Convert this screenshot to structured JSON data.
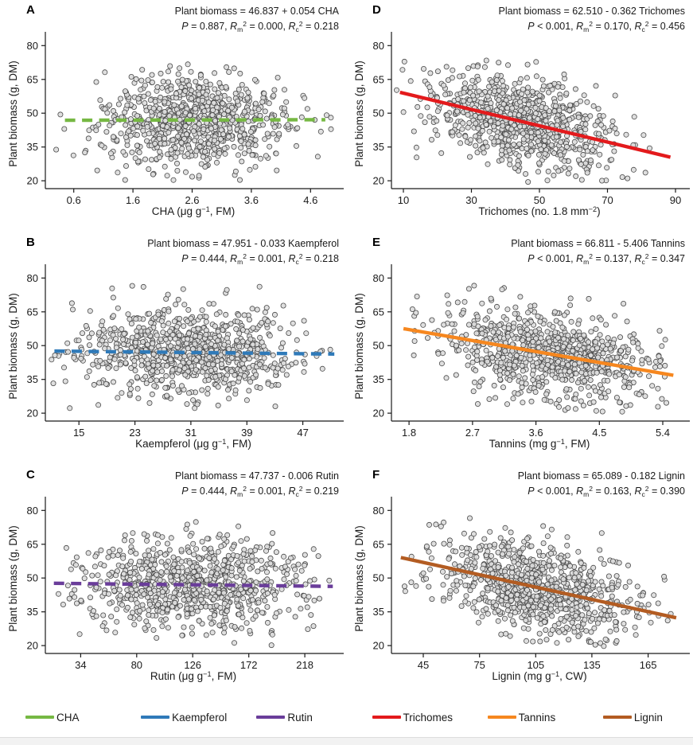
{
  "chart_data": [
    {
      "type": "scatter",
      "letter": "A",
      "equation": "Plant biomass = 46.837 + 0.054 CHA",
      "stats_segments": [
        {
          "text": "P",
          "style": "i"
        },
        {
          "text": " = 0.887, "
        },
        {
          "text": "R",
          "style": "i"
        },
        {
          "text": "m",
          "style": "sub"
        },
        {
          "text": "2",
          "style": "sup"
        },
        {
          "text": " = 0.000, "
        },
        {
          "text": "R",
          "style": "i"
        },
        {
          "text": "c",
          "style": "sub"
        },
        {
          "text": "2",
          "style": "sup"
        },
        {
          "text": " = 0.218"
        }
      ],
      "ylabel": "Plant biomass (g, DM)",
      "xlabel_segments": [
        {
          "text": "CHA (μg g"
        },
        {
          "text": "−1",
          "style": "sup"
        },
        {
          "text": ", FM)"
        }
      ],
      "xticks": [
        0.6,
        1.6,
        2.6,
        3.6,
        4.6
      ],
      "xtick_labels": [
        "0.6",
        "1.6",
        "2.6",
        "3.6",
        "4.6"
      ],
      "yticks": [
        20,
        35,
        50,
        65,
        80
      ],
      "ytick_labels": [
        "20",
        "35",
        "50",
        "65",
        "80"
      ],
      "xlim": [
        0.12,
        5.12
      ],
      "ylim": [
        16.5,
        84
      ],
      "regression": {
        "intercept": 46.837,
        "slope": 0.054,
        "x_start": 0.45,
        "x_end": 4.85,
        "style": "dashed",
        "color": "#76b843"
      },
      "scatter": {
        "n": 830,
        "seed": 101,
        "x_mean": 2.65,
        "x_sd": 0.78,
        "x_min": 0.25,
        "x_max": 4.95,
        "resid_sd": 10,
        "y_min": 19,
        "y_max": 78.5
      }
    },
    {
      "type": "scatter",
      "letter": "B",
      "equation": "Plant biomass = 47.951 - 0.033 Kaempferol",
      "stats_segments": [
        {
          "text": "P",
          "style": "i"
        },
        {
          "text": " = 0.444, "
        },
        {
          "text": "R",
          "style": "i"
        },
        {
          "text": "m",
          "style": "sub"
        },
        {
          "text": "2",
          "style": "sup"
        },
        {
          "text": " = 0.001, "
        },
        {
          "text": "R",
          "style": "i"
        },
        {
          "text": "c",
          "style": "sub"
        },
        {
          "text": "2",
          "style": "sup"
        },
        {
          "text": " = 0.218"
        }
      ],
      "ylabel": "Plant biomass (g, DM)",
      "xlabel_segments": [
        {
          "text": "Kaempferol (μg g"
        },
        {
          "text": "−1",
          "style": "sup"
        },
        {
          "text": ", FM)"
        }
      ],
      "xticks": [
        15,
        23,
        31,
        39,
        47
      ],
      "xtick_labels": [
        "15",
        "23",
        "31",
        "39",
        "47"
      ],
      "yticks": [
        20,
        35,
        50,
        65,
        80
      ],
      "ytick_labels": [
        "20",
        "35",
        "50",
        "65",
        "80"
      ],
      "xlim": [
        10.2,
        52.5
      ],
      "ylim": [
        16.5,
        84
      ],
      "regression": {
        "intercept": 47.951,
        "slope": -0.033,
        "x_start": 11.5,
        "x_end": 51.5,
        "style": "dashed",
        "color": "#2f7ab9"
      },
      "scatter": {
        "n": 830,
        "seed": 102,
        "x_mean": 30.5,
        "x_sd": 8,
        "x_min": 11,
        "x_max": 51.5,
        "resid_sd": 10,
        "y_min": 19,
        "y_max": 78.5
      }
    },
    {
      "type": "scatter",
      "letter": "C",
      "equation": "Plant biomass = 47.737 - 0.006 Rutin",
      "stats_segments": [
        {
          "text": "P",
          "style": "i"
        },
        {
          "text": " = 0.444, "
        },
        {
          "text": "R",
          "style": "i"
        },
        {
          "text": "m",
          "style": "sub"
        },
        {
          "text": "2",
          "style": "sup"
        },
        {
          "text": " = 0.001, "
        },
        {
          "text": "R",
          "style": "i"
        },
        {
          "text": "c",
          "style": "sub"
        },
        {
          "text": "2",
          "style": "sup"
        },
        {
          "text": " = 0.219"
        }
      ],
      "ylabel": "Plant biomass (g, DM)",
      "xlabel_segments": [
        {
          "text": "Rutin (μg g"
        },
        {
          "text": "−1",
          "style": "sup"
        },
        {
          "text": ", FM)"
        }
      ],
      "xticks": [
        34,
        80,
        126,
        172,
        218
      ],
      "xtick_labels": [
        "34",
        "80",
        "126",
        "172",
        "218"
      ],
      "yticks": [
        20,
        35,
        50,
        65,
        80
      ],
      "ytick_labels": [
        "20",
        "35",
        "50",
        "65",
        "80"
      ],
      "xlim": [
        5,
        248
      ],
      "ylim": [
        16.5,
        84
      ],
      "regression": {
        "intercept": 47.737,
        "slope": -0.006,
        "x_start": 12,
        "x_end": 241,
        "style": "dashed",
        "color": "#6a3d9a"
      },
      "scatter": {
        "n": 830,
        "seed": 103,
        "x_mean": 126,
        "x_sd": 46,
        "x_min": 10,
        "x_max": 243,
        "resid_sd": 10,
        "y_min": 19,
        "y_max": 78.5
      }
    },
    {
      "type": "scatter",
      "letter": "D",
      "equation": "Plant biomass = 62.510 - 0.362 Trichomes",
      "stats_segments": [
        {
          "text": "P",
          "style": "i"
        },
        {
          "text": " < 0.001, "
        },
        {
          "text": "R",
          "style": "i"
        },
        {
          "text": "m",
          "style": "sub"
        },
        {
          "text": "2",
          "style": "sup"
        },
        {
          "text": " = 0.170, "
        },
        {
          "text": "R",
          "style": "i"
        },
        {
          "text": "c",
          "style": "sub"
        },
        {
          "text": "2",
          "style": "sup"
        },
        {
          "text": " = 0.456"
        }
      ],
      "ylabel": "Plant biomass (g, DM)",
      "xlabel_segments": [
        {
          "text": "Trichomes (no. 1.8 mm"
        },
        {
          "text": "−2",
          "style": "sup"
        },
        {
          "text": ")"
        }
      ],
      "xticks": [
        10,
        30,
        50,
        70,
        90
      ],
      "xtick_labels": [
        "10",
        "30",
        "50",
        "70",
        "90"
      ],
      "yticks": [
        20,
        35,
        50,
        65,
        80
      ],
      "ytick_labels": [
        "20",
        "35",
        "50",
        "65",
        "80"
      ],
      "xlim": [
        6.5,
        93.5
      ],
      "ylim": [
        16.5,
        84
      ],
      "regression": {
        "intercept": 62.51,
        "slope": -0.362,
        "x_start": 9,
        "x_end": 88.5,
        "style": "solid",
        "color": "#e31a1c"
      },
      "scatter": {
        "n": 830,
        "seed": 104,
        "x_mean": 45,
        "x_sd": 13.5,
        "x_min": 8,
        "x_max": 88,
        "resid_sd": 10,
        "y_min": 19,
        "y_max": 78.5
      }
    },
    {
      "type": "scatter",
      "letter": "E",
      "equation": "Plant biomass = 66.811 - 5.406 Tannins",
      "stats_segments": [
        {
          "text": "P",
          "style": "i"
        },
        {
          "text": " < 0.001, "
        },
        {
          "text": "R",
          "style": "i"
        },
        {
          "text": "m",
          "style": "sub"
        },
        {
          "text": "2",
          "style": "sup"
        },
        {
          "text": " = 0.137, "
        },
        {
          "text": "R",
          "style": "i"
        },
        {
          "text": "c",
          "style": "sub"
        },
        {
          "text": "2",
          "style": "sup"
        },
        {
          "text": " = 0.347"
        }
      ],
      "ylabel": "Plant biomass (g, DM)",
      "xlabel_segments": [
        {
          "text": "Tannins (mg g"
        },
        {
          "text": "−1",
          "style": "sup"
        },
        {
          "text": ", FM)"
        }
      ],
      "xticks": [
        1.8,
        2.7,
        3.6,
        4.5,
        5.4
      ],
      "xtick_labels": [
        "1.8",
        "2.7",
        "3.6",
        "4.5",
        "5.4"
      ],
      "yticks": [
        20,
        35,
        50,
        65,
        80
      ],
      "ytick_labels": [
        "20",
        "35",
        "50",
        "65",
        "80"
      ],
      "xlim": [
        1.55,
        5.75
      ],
      "ylim": [
        16.5,
        84
      ],
      "regression": {
        "intercept": 66.811,
        "slope": -5.406,
        "x_start": 1.72,
        "x_end": 5.55,
        "style": "solid",
        "color": "#f6871f"
      },
      "scatter": {
        "n": 830,
        "seed": 105,
        "x_mean": 3.8,
        "x_sd": 0.78,
        "x_min": 1.7,
        "x_max": 5.5,
        "resid_sd": 10,
        "y_min": 19,
        "y_max": 78.5
      }
    },
    {
      "type": "scatter",
      "letter": "F",
      "equation": "Plant biomass = 65.089 - 0.182 Lignin",
      "stats_segments": [
        {
          "text": "P",
          "style": "i"
        },
        {
          "text": " < 0.001, "
        },
        {
          "text": "R",
          "style": "i"
        },
        {
          "text": "m",
          "style": "sub"
        },
        {
          "text": "2",
          "style": "sup"
        },
        {
          "text": " = 0.163, "
        },
        {
          "text": "R",
          "style": "i"
        },
        {
          "text": "c",
          "style": "sub"
        },
        {
          "text": "2",
          "style": "sup"
        },
        {
          "text": " = 0.390"
        }
      ],
      "ylabel": "Plant biomass (g, DM)",
      "xlabel_segments": [
        {
          "text": "Lignin (mg g"
        },
        {
          "text": "−1",
          "style": "sup"
        },
        {
          "text": ", CW)"
        }
      ],
      "xticks": [
        45,
        75,
        105,
        135,
        165
      ],
      "xtick_labels": [
        "45",
        "75",
        "105",
        "135",
        "165"
      ],
      "yticks": [
        20,
        35,
        50,
        65,
        80
      ],
      "ytick_labels": [
        "20",
        "35",
        "50",
        "65",
        "80"
      ],
      "xlim": [
        28,
        186
      ],
      "ylim": [
        16.5,
        84
      ],
      "regression": {
        "intercept": 65.089,
        "slope": -0.182,
        "x_start": 33,
        "x_end": 180,
        "style": "solid",
        "color": "#b35c22"
      },
      "scatter": {
        "n": 830,
        "seed": 106,
        "x_mean": 107,
        "x_sd": 26,
        "x_min": 33,
        "x_max": 180,
        "resid_sd": 10,
        "y_min": 19,
        "y_max": 78.5
      }
    }
  ],
  "legend": {
    "items": [
      {
        "label": "CHA",
        "color": "#76b843"
      },
      {
        "label": "Kaempferol",
        "color": "#2f7ab9"
      },
      {
        "label": "Rutin",
        "color": "#6a3d9a"
      },
      {
        "label": "Trichomes",
        "color": "#e31a1c"
      },
      {
        "label": "Tannins",
        "color": "#f6871f"
      },
      {
        "label": "Lignin",
        "color": "#b35c22"
      }
    ]
  },
  "point_style": {
    "fill": "#dcdcdc",
    "stroke": "#4a4a4a"
  }
}
